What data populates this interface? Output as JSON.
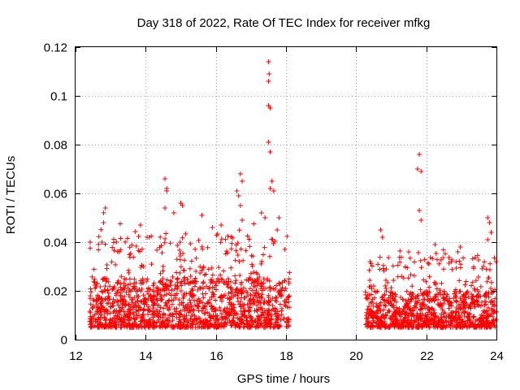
{
  "chart_data": {
    "type": "scatter",
    "title": "Day 318 of 2022, Rate Of TEC Index for receiver mfkg",
    "xlabel": "GPS time / hours",
    "ylabel": "ROTI / TECUs",
    "xlim": [
      12,
      24
    ],
    "ylim": [
      0,
      0.12
    ],
    "xticks": [
      "12",
      "14",
      "16",
      "18",
      "20",
      "22",
      "24"
    ],
    "yticks": [
      "0",
      "0.02",
      "0.04",
      "0.06",
      "0.08",
      "0.1",
      "0.12"
    ],
    "grid": true,
    "marker": "+",
    "color": "#ff0000",
    "series": [
      {
        "name": "ROTI",
        "segments": [
          {
            "x_range": [
              12.4,
              18.1
            ],
            "typical_range": [
              0.005,
              0.025
            ]
          },
          {
            "x_range": [
              20.25,
              24.0
            ],
            "typical_range": [
              0.005,
              0.02
            ]
          }
        ],
        "peaks": [
          {
            "x": 12.85,
            "y": 0.054
          },
          {
            "x": 12.8,
            "y": 0.052
          },
          {
            "x": 12.8,
            "y": 0.048
          },
          {
            "x": 13.85,
            "y": 0.047
          },
          {
            "x": 14.1,
            "y": 0.042
          },
          {
            "x": 14.55,
            "y": 0.066
          },
          {
            "x": 14.6,
            "y": 0.062
          },
          {
            "x": 14.6,
            "y": 0.061
          },
          {
            "x": 14.55,
            "y": 0.054
          },
          {
            "x": 14.8,
            "y": 0.052
          },
          {
            "x": 15.0,
            "y": 0.056
          },
          {
            "x": 15.05,
            "y": 0.055
          },
          {
            "x": 15.6,
            "y": 0.051
          },
          {
            "x": 15.9,
            "y": 0.046
          },
          {
            "x": 16.15,
            "y": 0.047
          },
          {
            "x": 16.6,
            "y": 0.061
          },
          {
            "x": 16.65,
            "y": 0.059
          },
          {
            "x": 16.7,
            "y": 0.068
          },
          {
            "x": 16.75,
            "y": 0.065
          },
          {
            "x": 16.7,
            "y": 0.055
          },
          {
            "x": 16.75,
            "y": 0.049
          },
          {
            "x": 17.3,
            "y": 0.052
          },
          {
            "x": 17.4,
            "y": 0.05
          },
          {
            "x": 17.5,
            "y": 0.114
          },
          {
            "x": 17.52,
            "y": 0.109
          },
          {
            "x": 17.5,
            "y": 0.106
          },
          {
            "x": 17.5,
            "y": 0.096
          },
          {
            "x": 17.55,
            "y": 0.095
          },
          {
            "x": 17.5,
            "y": 0.081
          },
          {
            "x": 17.55,
            "y": 0.077
          },
          {
            "x": 17.6,
            "y": 0.065
          },
          {
            "x": 17.55,
            "y": 0.062
          },
          {
            "x": 17.65,
            "y": 0.061
          },
          {
            "x": 17.8,
            "y": 0.05
          },
          {
            "x": 17.75,
            "y": 0.045
          },
          {
            "x": 20.7,
            "y": 0.045
          },
          {
            "x": 20.75,
            "y": 0.042
          },
          {
            "x": 21.5,
            "y": 0.036
          },
          {
            "x": 21.75,
            "y": 0.07
          },
          {
            "x": 21.8,
            "y": 0.076
          },
          {
            "x": 21.85,
            "y": 0.069
          },
          {
            "x": 21.8,
            "y": 0.053
          },
          {
            "x": 21.85,
            "y": 0.049
          },
          {
            "x": 22.25,
            "y": 0.039
          },
          {
            "x": 22.9,
            "y": 0.036
          },
          {
            "x": 23.75,
            "y": 0.05
          },
          {
            "x": 23.8,
            "y": 0.048
          },
          {
            "x": 23.85,
            "y": 0.044
          },
          {
            "x": 23.75,
            "y": 0.041
          }
        ]
      }
    ]
  }
}
